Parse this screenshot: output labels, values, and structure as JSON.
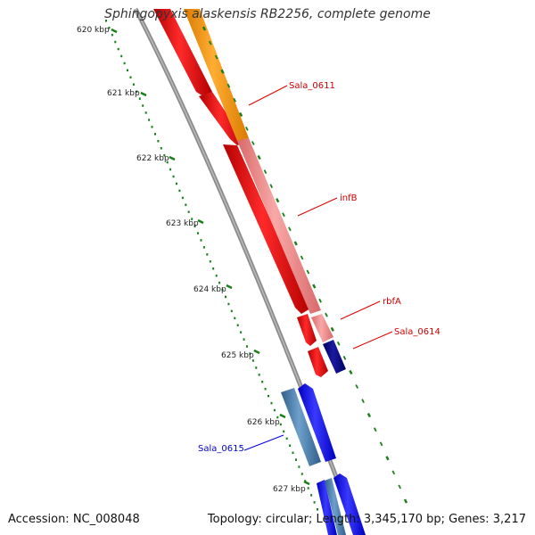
{
  "title": "Sphingopyxis alaskensis RB2256, complete genome",
  "accession": "Accession: NC_008048",
  "summary": "Topology: circular; Length: 3,345,170 bp; Genes: 3,217",
  "ticks": [
    {
      "label": "620 kbp",
      "value": 620
    },
    {
      "label": "621 kbp",
      "value": 621
    },
    {
      "label": "622 kbp",
      "value": 622
    },
    {
      "label": "623 kbp",
      "value": 623
    },
    {
      "label": "624 kbp",
      "value": 624
    },
    {
      "label": "625 kbp",
      "value": 625
    },
    {
      "label": "626 kbp",
      "value": 626
    },
    {
      "label": "627 kbp",
      "value": 627
    }
  ],
  "gene_labels": [
    {
      "label": "Sala_0611",
      "color": "#cc0000"
    },
    {
      "label": "infB",
      "color": "#cc0000"
    },
    {
      "label": "rbfA",
      "color": "#cc0000"
    },
    {
      "label": "Sala_0614",
      "color": "#cc0000"
    },
    {
      "label": "Sala_0615",
      "color": "#0000cc"
    }
  ],
  "colors": {
    "backbone": "#8c8c8c",
    "tick": "#1a7f1a",
    "forward_red": "#ff0000",
    "orange": "#ff9900",
    "pink": "#f08080",
    "navy": "#000080",
    "blue": "#0000ff",
    "steel_blue": "#4682b4"
  }
}
